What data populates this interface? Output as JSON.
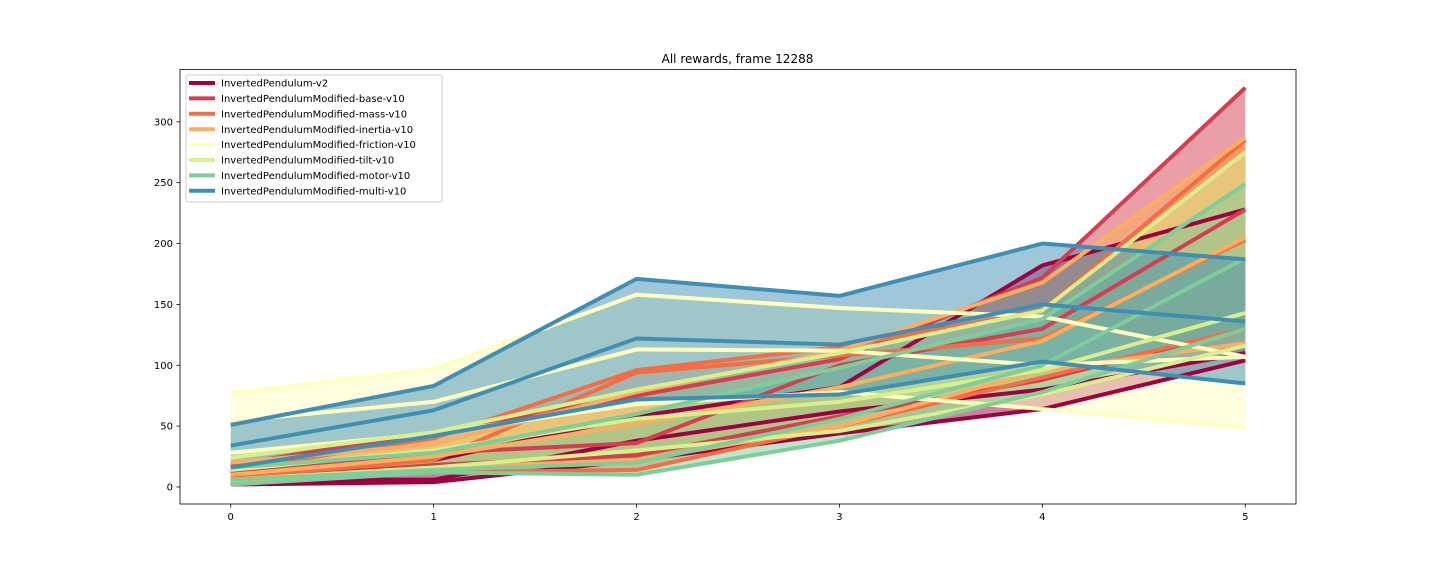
{
  "chart_data": {
    "type": "line",
    "title": "All rewards, frame 12288",
    "xlabel": "",
    "ylabel": "",
    "x": [
      0,
      1,
      2,
      3,
      4,
      5
    ],
    "xlim": [
      -0.25,
      5.25
    ],
    "ylim": [
      -14,
      343
    ],
    "xticks": [
      0,
      1,
      2,
      3,
      4,
      5
    ],
    "yticks": [
      0,
      50,
      100,
      150,
      200,
      250,
      300
    ],
    "grid": false,
    "legend_position": "upper-left",
    "series": [
      {
        "name": "InvertedPendulum-v2",
        "color": "#9e0142",
        "mean": [
          6,
          6,
          38,
          62,
          80,
          110
        ],
        "upper": [
          11,
          22,
          58,
          82,
          182,
          228
        ],
        "lower": [
          2,
          4,
          22,
          44,
          64,
          104
        ]
      },
      {
        "name": "InvertedPendulumModified-base-v10",
        "color": "#d53e4f",
        "mean": [
          12,
          28,
          36,
          100,
          130,
          228
        ],
        "upper": [
          18,
          45,
          75,
          105,
          172,
          328
        ],
        "lower": [
          6,
          18,
          26,
          58,
          88,
          130
        ]
      },
      {
        "name": "InvertedPendulumModified-mass-v10",
        "color": "#f46d43",
        "mean": [
          8,
          22,
          94,
          108,
          122,
          203
        ],
        "upper": [
          14,
          40,
          96,
          115,
          145,
          285
        ],
        "lower": [
          3,
          12,
          14,
          50,
          90,
          130
        ]
      },
      {
        "name": "InvertedPendulumModified-inertia-v10",
        "color": "#fdae61",
        "mean": [
          10,
          25,
          52,
          82,
          120,
          205
        ],
        "upper": [
          20,
          35,
          78,
          112,
          168,
          287
        ],
        "lower": [
          4,
          16,
          22,
          50,
          96,
          118
        ]
      },
      {
        "name": "InvertedPendulumModified-friction-v10",
        "color": "#ffffbf",
        "mean": [
          54,
          70,
          113,
          112,
          100,
          107
        ],
        "upper": [
          77,
          97,
          158,
          147,
          140,
          107
        ],
        "lower": [
          28,
          44,
          68,
          78,
          64,
          49
        ]
      },
      {
        "name": "InvertedPendulumModified-tilt-v10",
        "color": "#d9ef8b",
        "mean": [
          14,
          30,
          56,
          70,
          96,
          143
        ],
        "upper": [
          24,
          45,
          80,
          110,
          145,
          275
        ],
        "lower": [
          6,
          16,
          30,
          46,
          76,
          116
        ]
      },
      {
        "name": "InvertedPendulumModified-motor-v10",
        "color": "#7fcd9b",
        "mean": [
          6,
          14,
          20,
          56,
          100,
          188
        ],
        "upper": [
          16,
          28,
          60,
          98,
          138,
          249
        ],
        "lower": [
          2,
          12,
          10,
          38,
          78,
          130
        ]
      },
      {
        "name": "InvertedPendulumModified-multi-v10",
        "color": "#3f8fb4",
        "mean": [
          34,
          63,
          122,
          117,
          150,
          136
        ],
        "upper": [
          51,
          83,
          171,
          157,
          200,
          187
        ],
        "lower": [
          16,
          42,
          72,
          76,
          103,
          85
        ]
      }
    ]
  }
}
